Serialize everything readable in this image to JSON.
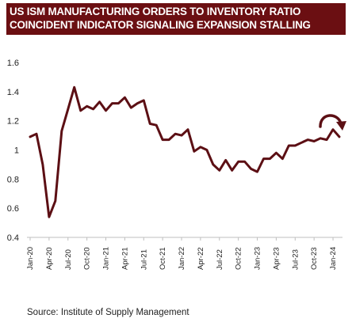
{
  "chart_data": {
    "type": "line",
    "title_lines": [
      "US ISM MANUFACTURING ORDERS TO INVENTORY RATIO",
      "COINCIDENT INDICATOR SIGNALING EXPANSION STALLING"
    ],
    "source": "Source:  Institute  of Supply Management",
    "xlabel": "",
    "ylabel": "",
    "ylim": [
      0.4,
      1.6
    ],
    "yticks": [
      "0.4",
      "0.6",
      "0.8",
      "1",
      "1.2",
      "1.4",
      "1.6"
    ],
    "xtick_labels": [
      "Jan-20",
      "Apr-20",
      "Jul-20",
      "Oct-20",
      "Jan-21",
      "Apr-21",
      "Jul-21",
      "Oct-21",
      "Jan-22",
      "Apr-22",
      "Jul-22",
      "Oct-22",
      "Jan-23",
      "Apr-23",
      "Jul-23",
      "Oct-23",
      "Jan-24"
    ],
    "grid": false,
    "legend": "none",
    "series": [
      {
        "color": "#5c0f14",
        "x": [
          "Jan-20",
          "Feb-20",
          "Mar-20",
          "Apr-20",
          "May-20",
          "Jun-20",
          "Jul-20",
          "Aug-20",
          "Sep-20",
          "Oct-20",
          "Nov-20",
          "Dec-20",
          "Jan-21",
          "Feb-21",
          "Mar-21",
          "Apr-21",
          "May-21",
          "Jun-21",
          "Jul-21",
          "Aug-21",
          "Sep-21",
          "Oct-21",
          "Nov-21",
          "Dec-21",
          "Jan-22",
          "Feb-22",
          "Mar-22",
          "Apr-22",
          "May-22",
          "Jun-22",
          "Jul-22",
          "Aug-22",
          "Sep-22",
          "Oct-22",
          "Nov-22",
          "Dec-22",
          "Jan-23",
          "Feb-23",
          "Mar-23",
          "Apr-23",
          "May-23",
          "Jun-23",
          "Jul-23",
          "Aug-23",
          "Sep-23",
          "Oct-23",
          "Nov-23",
          "Dec-23",
          "Jan-24",
          "Feb-24"
        ],
        "values": [
          1.09,
          1.11,
          0.9,
          0.54,
          0.65,
          1.13,
          1.28,
          1.43,
          1.27,
          1.3,
          1.28,
          1.33,
          1.27,
          1.32,
          1.32,
          1.36,
          1.29,
          1.32,
          1.34,
          1.18,
          1.17,
          1.07,
          1.07,
          1.11,
          1.1,
          1.14,
          0.99,
          1.02,
          1.0,
          0.9,
          0.86,
          0.93,
          0.86,
          0.92,
          0.92,
          0.87,
          0.85,
          0.94,
          0.94,
          0.98,
          0.94,
          1.03,
          1.03,
          1.05,
          1.07,
          1.06,
          1.08,
          1.07,
          1.14,
          1.09
        ]
      }
    ],
    "annotations": [
      {
        "type": "curved-arrow",
        "color": "#5c0f14",
        "anchor": "above last point, turning downward"
      }
    ]
  }
}
